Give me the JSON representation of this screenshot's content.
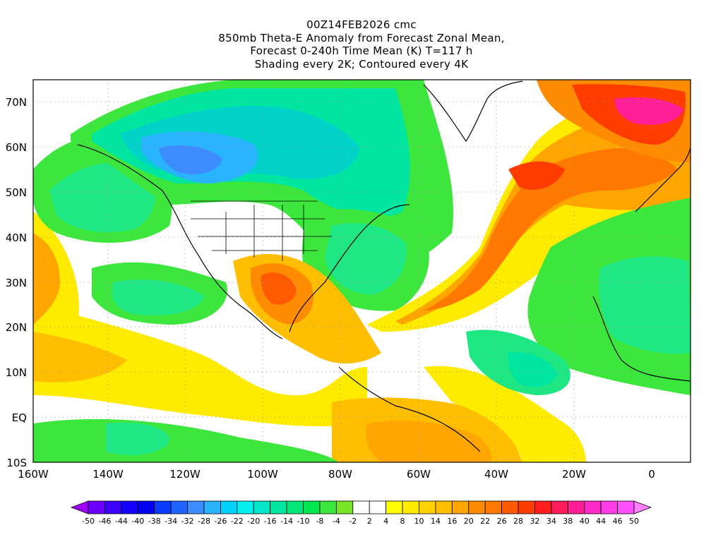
{
  "title": {
    "line1": "00Z14FEB2026 cmc",
    "line2": "850mb Theta-E Anomaly from Forecast Zonal Mean,",
    "line3": "Forecast 0-240h Time Mean (K) T=117 h",
    "line4": "Shading every 2K; Contoured every 4K"
  },
  "axes": {
    "lon_labels": [
      "160W",
      "140W",
      "120W",
      "100W",
      "80W",
      "60W",
      "40W",
      "20W",
      "0"
    ],
    "lat_labels": [
      "70N",
      "60N",
      "50N",
      "40N",
      "30N",
      "20N",
      "10N",
      "EQ",
      "10S"
    ]
  },
  "colorbar": {
    "labels": [
      "-50",
      "-46",
      "-44",
      "-40",
      "-38",
      "-34",
      "-32",
      "-28",
      "-26",
      "-22",
      "-20",
      "-16",
      "-14",
      "-10",
      "-8",
      "-4",
      "-2",
      "2",
      "4",
      "8",
      "10",
      "14",
      "16",
      "20",
      "22",
      "26",
      "28",
      "32",
      "34",
      "38",
      "40",
      "44",
      "46",
      "50"
    ],
    "colors": [
      "#a000ff",
      "#6e00ff",
      "#3c00ff",
      "#1400ff",
      "#0000f0",
      "#0a3cff",
      "#1e64ff",
      "#3c8cff",
      "#2ab4ff",
      "#00d2ff",
      "#00f0f0",
      "#00e6c8",
      "#00e6a0",
      "#00e678",
      "#00e650",
      "#3ce63c",
      "#78e628",
      "#ffffff",
      "#ffffff",
      "#ffff00",
      "#ffeb00",
      "#ffd200",
      "#ffbe00",
      "#ffa500",
      "#ff8c00",
      "#ff7800",
      "#ff5a00",
      "#ff3c00",
      "#ff1e1e",
      "#ff1e5a",
      "#ff1e96",
      "#ff28c8",
      "#ff3ce6",
      "#ff50ff",
      "#ff80ff"
    ]
  },
  "map_features": {
    "regions": [
      {
        "name": "n-pacific-low",
        "color": "#1ee682"
      },
      {
        "name": "canada-cold",
        "color": "#00d2c8"
      },
      {
        "name": "nw-canada-core",
        "color": "#2aa0ff"
      },
      {
        "name": "greenland-warm",
        "color": "#ff7800"
      },
      {
        "name": "gulf-warm",
        "color": "#ff8c00"
      },
      {
        "name": "atlantic-tongue",
        "color": "#ffa500"
      },
      {
        "name": "africa-cool",
        "color": "#1ee682"
      }
    ]
  }
}
